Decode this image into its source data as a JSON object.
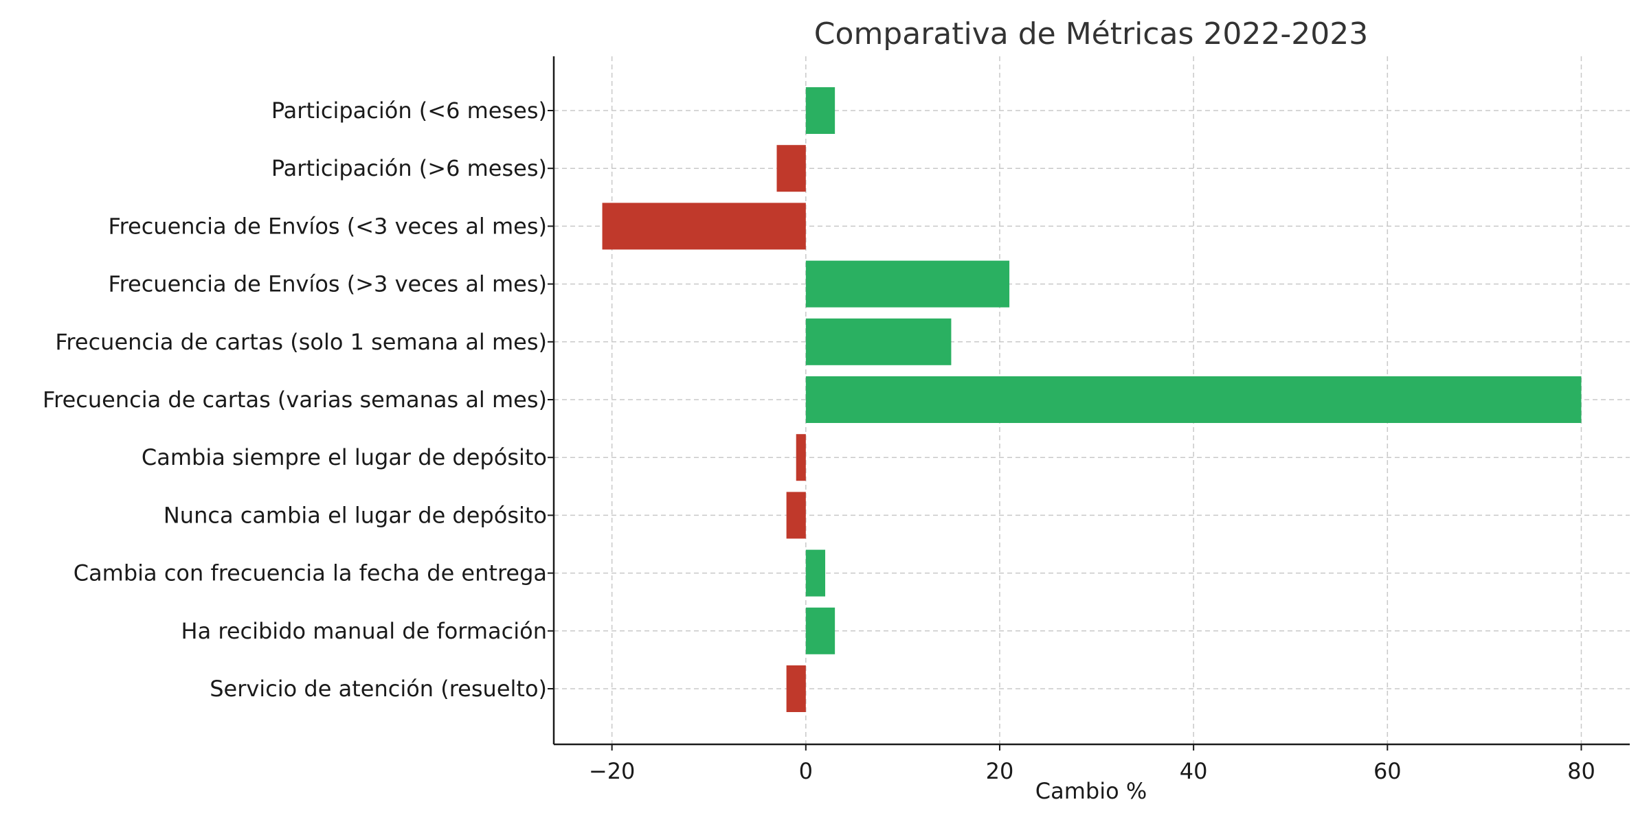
{
  "chart_data": {
    "type": "bar",
    "orientation": "horizontal",
    "title": "Comparativa de Métricas 2022-2023",
    "xlabel": "Cambio %",
    "ylabel": "",
    "xlim": [
      -26,
      85
    ],
    "xticks": [
      -20,
      0,
      20,
      40,
      60,
      80
    ],
    "xtick_labels": [
      "−20",
      "0",
      "20",
      "40",
      "60",
      "80"
    ],
    "grid": true,
    "categories": [
      "Participación (<6 meses)",
      "Participación (>6 meses)",
      "Frecuencia de Envíos (<3 veces al mes)",
      "Frecuencia de Envíos (>3 veces al mes)",
      "Frecuencia de cartas (solo 1 semana al mes)",
      "Frecuencia de cartas (varias semanas al mes)",
      "Cambia siempre el lugar de depósito",
      "Nunca cambia el lugar de depósito",
      "Cambia con frecuencia la fecha de entrega",
      "Ha recibido manual de formación",
      "Servicio de atención (resuelto)"
    ],
    "values": [
      3,
      -3,
      -21,
      21,
      15,
      80,
      -1,
      -2,
      2,
      3,
      -2
    ],
    "colors": {
      "positive": "#2ab061",
      "negative": "#c0392b"
    }
  }
}
